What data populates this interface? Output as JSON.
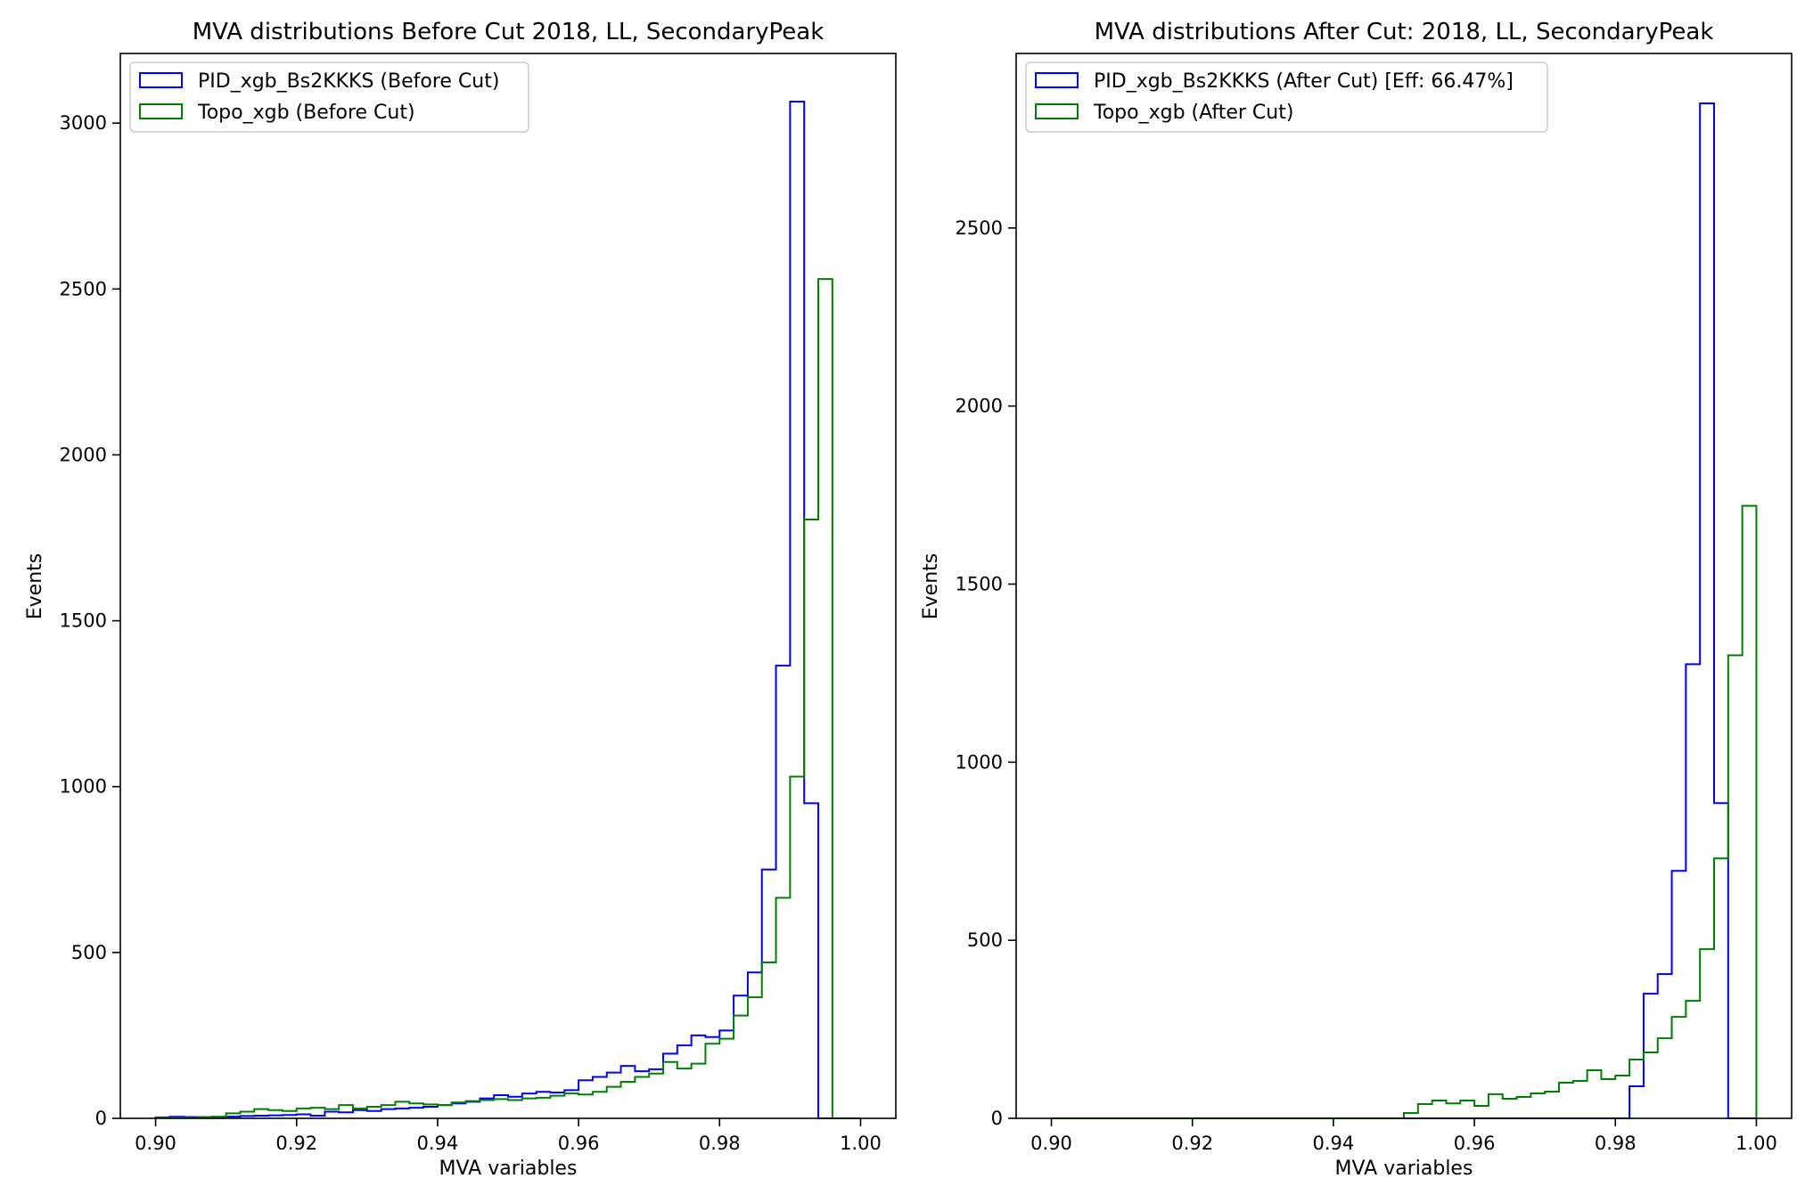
{
  "chart_data": [
    {
      "type": "histogram",
      "title": "MVA distributions Before Cut 2018, LL, SecondaryPeak",
      "xlabel": "MVA variables",
      "ylabel": "Events",
      "xlim": [
        0.895,
        1.005
      ],
      "ylim": [
        0,
        3210
      ],
      "xticks": [
        0.9,
        0.92,
        0.94,
        0.96,
        0.98,
        1.0
      ],
      "xtick_labels": [
        "0.90",
        "0.92",
        "0.94",
        "0.96",
        "0.98",
        "1.00"
      ],
      "yticks": [
        0,
        500,
        1000,
        1500,
        2000,
        2500,
        3000
      ],
      "ytick_labels": [
        "0",
        "500",
        "1000",
        "1500",
        "2000",
        "2500",
        "3000"
      ],
      "bin_edges": {
        "start": 0.9,
        "stop": 1.0,
        "count": 50
      },
      "legend_position": "upper-left",
      "series": [
        {
          "name": "PID_xgb_Bs2KKKS (Before Cut)",
          "color": "#0000ff",
          "counts": [
            3,
            5,
            4,
            3,
            4,
            5,
            7,
            8,
            9,
            10,
            12,
            8,
            20,
            18,
            25,
            22,
            28,
            30,
            32,
            35,
            40,
            45,
            50,
            60,
            70,
            65,
            75,
            80,
            78,
            85,
            115,
            125,
            138,
            158,
            142,
            148,
            195,
            220,
            250,
            245,
            265,
            370,
            440,
            750,
            1365,
            3065,
            950,
            0,
            0,
            0
          ]
        },
        {
          "name": "Topo_xgb (Before Cut)",
          "color": "#008000",
          "counts": [
            2,
            3,
            2,
            4,
            5,
            15,
            20,
            28,
            25,
            22,
            30,
            32,
            28,
            40,
            30,
            35,
            40,
            50,
            45,
            42,
            40,
            48,
            52,
            55,
            58,
            55,
            60,
            62,
            68,
            75,
            72,
            80,
            95,
            110,
            125,
            135,
            170,
            150,
            165,
            225,
            240,
            310,
            365,
            470,
            665,
            1030,
            1805,
            2530,
            0,
            0
          ]
        }
      ]
    },
    {
      "type": "histogram",
      "title": "MVA distributions After Cut: 2018, LL, SecondaryPeak",
      "xlabel": "MVA variables",
      "ylabel": "Events",
      "xlim": [
        0.895,
        1.005
      ],
      "ylim": [
        0,
        2990
      ],
      "xticks": [
        0.9,
        0.92,
        0.94,
        0.96,
        0.98,
        1.0
      ],
      "xtick_labels": [
        "0.90",
        "0.92",
        "0.94",
        "0.96",
        "0.98",
        "1.00"
      ],
      "yticks": [
        0,
        500,
        1000,
        1500,
        2000,
        2500
      ],
      "ytick_labels": [
        "0",
        "500",
        "1000",
        "1500",
        "2000",
        "2500"
      ],
      "bin_edges": {
        "start": 0.9,
        "stop": 1.0,
        "count": 50
      },
      "legend_position": "upper-left",
      "series": [
        {
          "name": "PID_xgb_Bs2KKKS (After Cut) [Eff: 66.47%]",
          "color": "#0000ff",
          "counts": [
            0,
            0,
            0,
            0,
            0,
            0,
            0,
            0,
            0,
            0,
            0,
            0,
            0,
            0,
            0,
            0,
            0,
            0,
            0,
            0,
            0,
            0,
            0,
            0,
            0,
            0,
            0,
            0,
            0,
            0,
            0,
            0,
            0,
            0,
            0,
            0,
            0,
            0,
            0,
            0,
            0,
            90,
            350,
            405,
            695,
            1275,
            2850,
            885,
            0,
            0
          ]
        },
        {
          "name": "Topo_xgb (After Cut)",
          "color": "#008000",
          "counts": [
            0,
            0,
            0,
            0,
            0,
            0,
            0,
            0,
            0,
            0,
            0,
            0,
            0,
            0,
            0,
            0,
            0,
            0,
            0,
            0,
            0,
            0,
            0,
            0,
            0,
            15,
            40,
            50,
            42,
            50,
            35,
            68,
            55,
            60,
            70,
            75,
            100,
            105,
            135,
            110,
            120,
            165,
            185,
            225,
            285,
            330,
            475,
            730,
            1300,
            1720
          ]
        }
      ]
    }
  ]
}
